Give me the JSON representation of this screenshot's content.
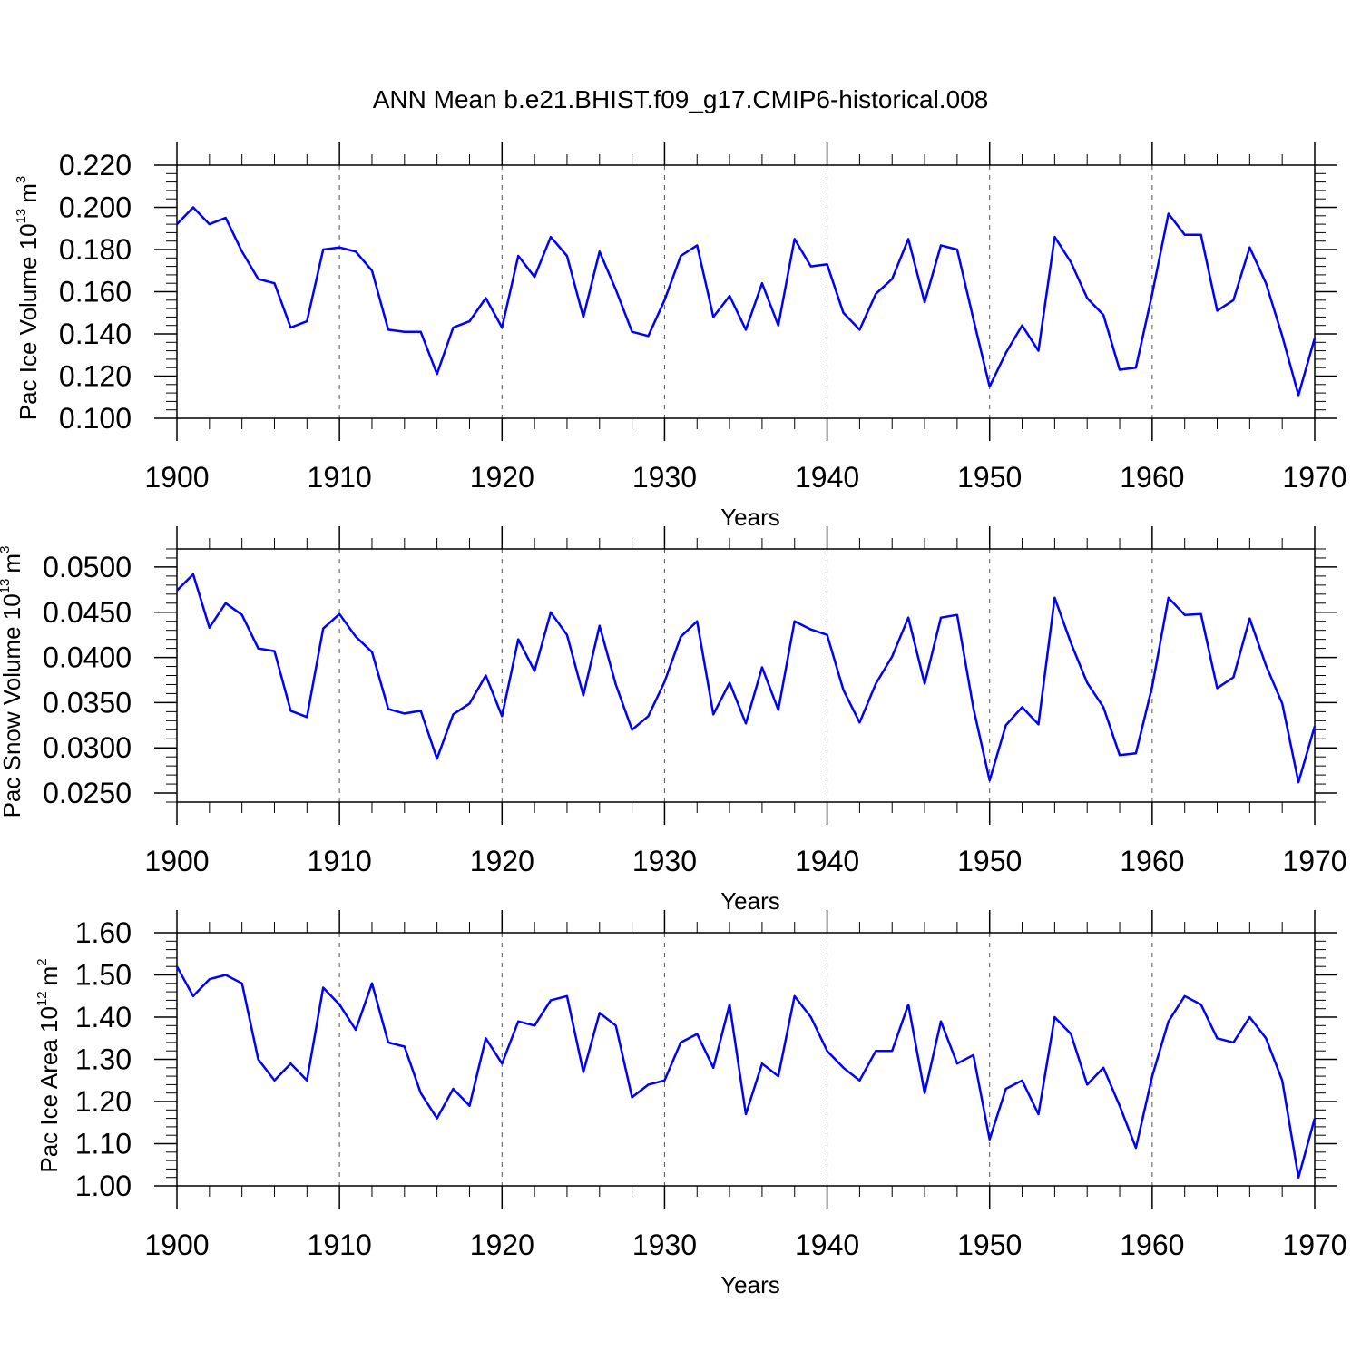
{
  "figure": {
    "title": "ANN Mean b.e21.BHIST.f09_g17.CMIP6-historical.008",
    "line_color": "#0000ff",
    "axis_color": "#000000",
    "grid_color": "#555555"
  },
  "chart_data": [
    {
      "type": "line",
      "xlabel": "Years",
      "ylabel": {
        "text": "Pac Ice Volume 10",
        "exp": "13",
        "unit": "m",
        "unit_exp": "3"
      },
      "xlim": [
        1900,
        1970
      ],
      "ylim": [
        0.1,
        0.22
      ],
      "yticks": [
        0.1,
        0.12,
        0.14,
        0.16,
        0.18,
        0.2,
        0.22
      ],
      "ytick_labels": [
        "0.100",
        "0.120",
        "0.140",
        "0.160",
        "0.180",
        "0.200",
        "0.220"
      ],
      "xticks": [
        1900,
        1910,
        1920,
        1930,
        1940,
        1950,
        1960,
        1970
      ],
      "xtick_labels": [
        "1900",
        "1910",
        "1920",
        "1930",
        "1940",
        "1950",
        "1960",
        "1970"
      ],
      "grid": "x-dashed",
      "series": [
        {
          "x_start": 1900,
          "values": [
            0.192,
            0.2,
            0.192,
            0.195,
            0.179,
            0.166,
            0.164,
            0.143,
            0.146,
            0.18,
            0.181,
            0.179,
            0.17,
            0.142,
            0.141,
            0.141,
            0.121,
            0.143,
            0.146,
            0.157,
            0.143,
            0.177,
            0.167,
            0.186,
            0.177,
            0.148,
            0.179,
            0.161,
            0.141,
            0.139,
            0.156,
            0.177,
            0.182,
            0.148,
            0.158,
            0.142,
            0.164,
            0.144,
            0.185,
            0.172,
            0.173,
            0.15,
            0.142,
            0.159,
            0.166,
            0.185,
            0.155,
            0.182,
            0.18,
            0.147,
            0.115,
            0.131,
            0.144,
            0.132,
            0.186,
            0.174,
            0.157,
            0.149,
            0.123,
            0.124,
            0.159,
            0.197,
            0.187,
            0.187,
            0.151,
            0.156,
            0.181,
            0.164,
            0.139,
            0.111,
            0.138
          ]
        }
      ]
    },
    {
      "type": "line",
      "xlabel": "Years",
      "ylabel": {
        "text": "Pac Snow Volume 10",
        "exp": "13",
        "unit": "m",
        "unit_exp": "3"
      },
      "xlim": [
        1900,
        1970
      ],
      "ylim": [
        0.024,
        0.052
      ],
      "yticks": [
        0.025,
        0.03,
        0.035,
        0.04,
        0.045,
        0.05
      ],
      "ytick_labels": [
        "0.0250",
        "0.0300",
        "0.0350",
        "0.0400",
        "0.0450",
        "0.0500"
      ],
      "xticks": [
        1900,
        1910,
        1920,
        1930,
        1940,
        1950,
        1960,
        1970
      ],
      "xtick_labels": [
        "1900",
        "1910",
        "1920",
        "1930",
        "1940",
        "1950",
        "1960",
        "1970"
      ],
      "grid": "x-dashed",
      "series": [
        {
          "x_start": 1900,
          "values": [
            0.0474,
            0.0492,
            0.0433,
            0.046,
            0.0447,
            0.041,
            0.0407,
            0.0341,
            0.0334,
            0.0432,
            0.0448,
            0.0423,
            0.0406,
            0.0343,
            0.0338,
            0.0341,
            0.0288,
            0.0337,
            0.0349,
            0.038,
            0.0335,
            0.042,
            0.0385,
            0.045,
            0.0425,
            0.0358,
            0.0435,
            0.037,
            0.032,
            0.0335,
            0.0373,
            0.0423,
            0.044,
            0.0337,
            0.0372,
            0.0327,
            0.0389,
            0.0342,
            0.044,
            0.0431,
            0.0425,
            0.0364,
            0.0328,
            0.0371,
            0.0401,
            0.0444,
            0.0371,
            0.0444,
            0.0447,
            0.0344,
            0.0264,
            0.0325,
            0.0345,
            0.0326,
            0.0466,
            0.0416,
            0.0372,
            0.0345,
            0.0292,
            0.0294,
            0.0368,
            0.0466,
            0.0447,
            0.0448,
            0.0366,
            0.0378,
            0.0443,
            0.0391,
            0.0349,
            0.0262,
            0.0324
          ]
        }
      ]
    },
    {
      "type": "line",
      "xlabel": "Years",
      "ylabel": {
        "text": "Pac Ice Area 10",
        "exp": "12",
        "unit": "m",
        "unit_exp": "2"
      },
      "xlim": [
        1900,
        1970
      ],
      "ylim": [
        1.0,
        1.6
      ],
      "yticks": [
        1.0,
        1.1,
        1.2,
        1.3,
        1.4,
        1.5,
        1.6
      ],
      "ytick_labels": [
        "1.00",
        "1.10",
        "1.20",
        "1.30",
        "1.40",
        "1.50",
        "1.60"
      ],
      "xticks": [
        1900,
        1910,
        1920,
        1930,
        1940,
        1950,
        1960,
        1970
      ],
      "xtick_labels": [
        "1900",
        "1910",
        "1920",
        "1930",
        "1940",
        "1950",
        "1960",
        "1970"
      ],
      "grid": "x-dashed",
      "series": [
        {
          "x_start": 1900,
          "values": [
            1.52,
            1.45,
            1.49,
            1.5,
            1.48,
            1.3,
            1.25,
            1.29,
            1.25,
            1.47,
            1.43,
            1.37,
            1.48,
            1.34,
            1.33,
            1.22,
            1.16,
            1.23,
            1.19,
            1.35,
            1.29,
            1.39,
            1.38,
            1.44,
            1.45,
            1.27,
            1.41,
            1.38,
            1.21,
            1.24,
            1.25,
            1.34,
            1.36,
            1.28,
            1.43,
            1.17,
            1.29,
            1.26,
            1.45,
            1.4,
            1.32,
            1.28,
            1.25,
            1.32,
            1.32,
            1.43,
            1.22,
            1.39,
            1.29,
            1.31,
            1.11,
            1.23,
            1.25,
            1.17,
            1.4,
            1.36,
            1.24,
            1.28,
            1.19,
            1.09,
            1.26,
            1.39,
            1.45,
            1.43,
            1.35,
            1.34,
            1.4,
            1.35,
            1.25,
            1.02,
            1.16
          ]
        }
      ]
    }
  ]
}
